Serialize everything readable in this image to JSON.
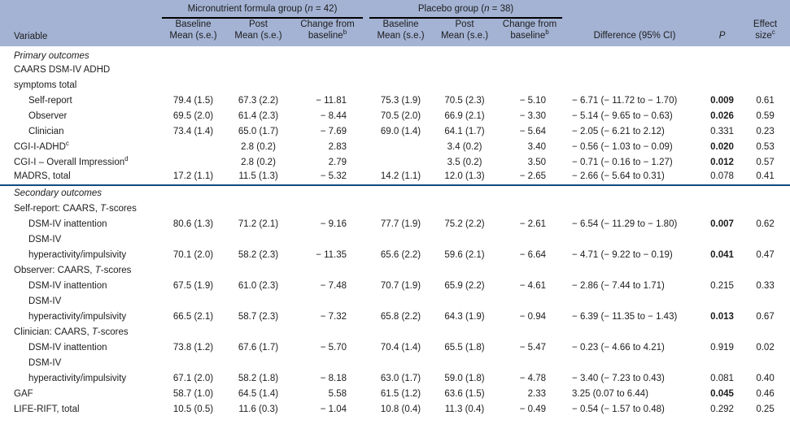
{
  "table": {
    "header": {
      "variable": "Variable",
      "groups": [
        {
          "pre": "Micronutrient formula group (",
          "n": "n",
          "post": " = 42)"
        },
        {
          "pre": "Placebo group (",
          "n": "n",
          "post": " = 38)"
        }
      ],
      "cols": {
        "baseline1": "Baseline",
        "baseline2": "Mean (s.e.)",
        "post1": "Post",
        "post2": "Mean (s.e.)",
        "change1": "Change from",
        "change2": "baseline",
        "change_sup": "b",
        "difference": "Difference (95% CI)",
        "p": "P",
        "effect1": "Effect",
        "effect2": "size",
        "effect_sup": "c"
      }
    },
    "rows": [
      {
        "label": "Primary outcomes",
        "italic": true
      },
      {
        "label": "CAARS DSM-IV ADHD"
      },
      {
        "label": "symptoms total"
      },
      {
        "label": "Self-report",
        "indent": true,
        "p_bold": true,
        "cells": [
          "79.4 (1.5)",
          "67.3 (2.2)",
          "− 11.81",
          "75.3 (1.9)",
          "70.5 (2.3)",
          "− 5.10",
          "− 6.71 (− 11.72 to − 1.70)",
          "0.009",
          "0.61"
        ]
      },
      {
        "label": "Observer",
        "indent": true,
        "p_bold": true,
        "cells": [
          "69.5 (2.0)",
          "61.4 (2.3)",
          "− 8.44",
          "70.5 (2.0)",
          "66.9 (2.1)",
          "− 3.30",
          "− 5.14 (− 9.65 to − 0.63)",
          "0.026",
          "0.59"
        ]
      },
      {
        "label": "Clinician",
        "indent": true,
        "cells": [
          "73.4 (1.4)",
          "65.0 (1.7)",
          "− 7.69",
          "69.0 (1.4)",
          "64.1 (1.7)",
          "− 5.64",
          "− 2.05 (− 6.21 to 2.12)",
          "0.331",
          "0.23"
        ]
      },
      {
        "label": "CGI-I-ADHD",
        "sup": "c",
        "p_bold": true,
        "cells": [
          "",
          "2.8 (0.2)",
          "2.83",
          "",
          "3.4 (0.2)",
          "3.40",
          "− 0.56 (− 1.03 to − 0.09)",
          "0.020",
          "0.53"
        ]
      },
      {
        "label": "CGI-I – Overall Impression",
        "sup": "d",
        "p_bold": true,
        "cells": [
          "",
          "2.8 (0.2)",
          "2.79",
          "",
          "3.5 (0.2)",
          "3.50",
          "− 0.71 (− 0.16 to − 1.27)",
          "0.012",
          "0.57"
        ]
      },
      {
        "label": "MADRS, total",
        "divider": true,
        "cells": [
          "17.2 (1.1)",
          "11.5 (1.3)",
          "− 5.32",
          "14.2 (1.1)",
          "12.0 (1.3)",
          "− 2.65",
          "− 2.66 (− 5.64 to 0.31)",
          "0.078",
          "0.41"
        ]
      },
      {
        "label": "Secondary outcomes",
        "italic": true
      },
      {
        "label": "Self-report: CAARS, T-scores"
      },
      {
        "label": "DSM-IV inattention",
        "indent": true,
        "p_bold": true,
        "cells": [
          "80.6 (1.3)",
          "71.2 (2.1)",
          "− 9.16",
          "77.7 (1.9)",
          "75.2 (2.2)",
          "− 2.61",
          "− 6.54 (− 11.29 to − 1.80)",
          "0.007",
          "0.62"
        ]
      },
      {
        "label": "DSM-IV",
        "indent": true
      },
      {
        "label": "hyperactivity/impulsivity",
        "indent": true,
        "p_bold": true,
        "cells": [
          "70.1 (2.0)",
          "58.2 (2.3)",
          "− 11.35",
          "65.6 (2.2)",
          "59.6 (2.1)",
          "− 6.64",
          "− 4.71 (− 9.22 to − 0.19)",
          "0.041",
          "0.47"
        ]
      },
      {
        "label": "Observer: CAARS, T-scores"
      },
      {
        "label": "DSM-IV inattention",
        "indent": true,
        "cells": [
          "67.5 (1.9)",
          "61.0 (2.3)",
          "− 7.48",
          "70.7 (1.9)",
          "65.9 (2.2)",
          "− 4.61",
          "− 2.86 (− 7.44 to 1.71)",
          "0.215",
          "0.33"
        ]
      },
      {
        "label": "DSM-IV",
        "indent": true
      },
      {
        "label": "hyperactivity/impulsivity",
        "indent": true,
        "p_bold": true,
        "cells": [
          "66.5 (2.1)",
          "58.7 (2.3)",
          "− 7.32",
          "65.8 (2.2)",
          "64.3 (1.9)",
          "− 0.94",
          "− 6.39 (− 11.35 to − 1.43)",
          "0.013",
          "0.67"
        ]
      },
      {
        "label": "Clinician: CAARS, T-scores"
      },
      {
        "label": "DSM-IV inattention",
        "indent": true,
        "cells": [
          "73.8 (1.2)",
          "67.6 (1.7)",
          "− 5.70",
          "70.4 (1.4)",
          "65.5 (1.8)",
          "− 5.47",
          "− 0.23 (− 4.66 to 4.21)",
          "0.919",
          "0.02"
        ]
      },
      {
        "label": "DSM-IV",
        "indent": true
      },
      {
        "label": "hyperactivity/impulsivity",
        "indent": true,
        "cells": [
          "67.1 (2.0)",
          "58.2 (1.8)",
          "− 8.18",
          "63.0 (1.7)",
          "59.0 (1.8)",
          "− 4.78",
          "− 3.40 (− 7.23 to 0.43)",
          "0.081",
          "0.40"
        ]
      },
      {
        "label": "GAF",
        "p_bold": true,
        "cells": [
          "58.7 (1.0)",
          "64.5 (1.4)",
          "5.58",
          "61.5 (1.2)",
          "63.6 (1.5)",
          "2.33",
          "3.25 (0.07 to 6.44)",
          "0.045",
          "0.46"
        ]
      },
      {
        "label": "LIFE-RIFT, total",
        "cells": [
          "10.5 (0.5)",
          "11.6 (0.3)",
          "− 1.04",
          "10.8 (0.4)",
          "11.3 (0.4)",
          "− 0.49",
          "− 0.54 (− 1.57 to 0.48)",
          "0.292",
          "0.25"
        ]
      }
    ],
    "colors": {
      "header_bg": "#a4b3d4",
      "section_divider": "#0f4c81",
      "group_rule": "#000000"
    }
  }
}
